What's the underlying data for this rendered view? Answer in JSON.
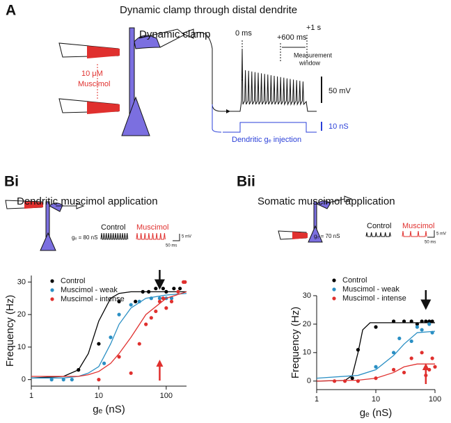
{
  "panel_a": {
    "label": "A",
    "title": "Dynamic clamp through distal dendrite",
    "clamp_label": "Dynamic clamp",
    "drug_dose": "10 μM",
    "drug_name": "Muscimol",
    "t0": "0 ms",
    "t600": "+600 ms",
    "t1": "+1 s",
    "window_1": "Measurement",
    "window_2": "window",
    "v_scale": "50 mV",
    "g_scale": "10 nS",
    "injection": "Dendritic gₑ injection"
  },
  "panel_bi": {
    "label": "Bi",
    "title": "Dendritic muscimol application",
    "ge": "gₑ = 80 nS",
    "control": "Control",
    "muscimol": "Muscimol",
    "v_scale": "5 mV",
    "t_scale": "50 ms"
  },
  "panel_bii": {
    "label": "Bii",
    "title": "Somatic muscimol application",
    "ge": "gₑ = 70 nS",
    "control": "Control",
    "muscimol": "Muscimol",
    "v_scale": "5 mV",
    "t_scale": "50 ms"
  },
  "chart_data": [
    {
      "type": "scatter",
      "x_label": "gₑ (nS)",
      "y_label": "Frequency (Hz)",
      "log_x": true,
      "xlim": [
        1,
        200
      ],
      "ylim": [
        -2,
        32
      ],
      "xticks": [
        1,
        10,
        100
      ],
      "yticks": [
        0,
        10,
        20,
        30
      ],
      "arrow_x": 80,
      "series": [
        {
          "name": "Control",
          "color": "#000000",
          "x": [
            5,
            10,
            20,
            35,
            45,
            55,
            70,
            80,
            90,
            100,
            130,
            160
          ],
          "values": [
            3,
            11,
            24,
            24,
            27,
            27,
            28,
            29,
            28,
            27,
            28,
            28
          ],
          "fit_x": [
            1,
            3,
            5,
            7,
            10,
            15,
            20,
            30,
            50,
            100,
            200
          ],
          "fit_values": [
            0.5,
            1,
            3,
            8,
            18,
            25,
            26.5,
            27,
            27,
            27,
            27
          ]
        },
        {
          "name": "Muscimol - weak",
          "color": "#2a8fc4",
          "x": [
            2,
            3,
            4,
            12,
            15,
            20,
            30,
            40,
            60,
            80,
            100,
            120
          ],
          "values": [
            0,
            0,
            0,
            5,
            13,
            20,
            23,
            24,
            25,
            25,
            25,
            25
          ],
          "fit_x": [
            1,
            3,
            5,
            7,
            10,
            15,
            20,
            30,
            50,
            100,
            200
          ],
          "fit_values": [
            0.5,
            0.5,
            1,
            2,
            4,
            11,
            17,
            22,
            25,
            26,
            26.5
          ]
        },
        {
          "name": "Muscimol - intense",
          "color": "#e0302e",
          "x": [
            10,
            20,
            30,
            40,
            50,
            60,
            70,
            80,
            90,
            100,
            120,
            150,
            180,
            190
          ],
          "values": [
            0,
            7,
            2,
            11,
            17,
            19,
            21,
            24,
            25,
            22,
            24,
            27,
            30,
            30
          ],
          "fit_x": [
            1,
            3,
            5,
            7,
            10,
            15,
            20,
            30,
            50,
            100,
            200
          ],
          "fit_values": [
            1,
            1,
            1,
            1.5,
            2.5,
            5,
            8,
            13,
            20,
            25,
            27
          ]
        }
      ]
    },
    {
      "type": "scatter",
      "x_label": "gₑ (nS)",
      "y_label": "Frequency (Hz)",
      "log_x": true,
      "xlim": [
        1,
        100
      ],
      "ylim": [
        -3,
        30
      ],
      "xticks": [
        1,
        10,
        100
      ],
      "yticks": [
        0,
        10,
        20,
        30
      ],
      "arrow_x": 70,
      "series": [
        {
          "name": "Control",
          "color": "#000000",
          "x": [
            4,
            5,
            10,
            20,
            30,
            40,
            50,
            60,
            70,
            80,
            90
          ],
          "values": [
            1,
            11,
            19,
            21,
            21,
            21,
            20,
            21,
            21,
            21,
            21
          ],
          "fit_x": [
            1,
            3,
            4,
            5,
            6,
            8,
            10,
            100
          ],
          "fit_values": [
            0,
            0.2,
            2,
            10,
            18,
            20.5,
            20.5,
            20.5
          ]
        },
        {
          "name": "Muscimol - weak",
          "color": "#2a8fc4",
          "x": [
            10,
            20,
            25,
            40,
            50,
            60,
            80,
            90
          ],
          "values": [
            5,
            10,
            15,
            14,
            19,
            18,
            20,
            17
          ],
          "fit_x": [
            1,
            5,
            10,
            20,
            30,
            50,
            100
          ],
          "fit_values": [
            1,
            2,
            4,
            9,
            13,
            17,
            17.5
          ]
        },
        {
          "name": "Muscimol - intense",
          "color": "#e0302e",
          "x": [
            2,
            3,
            5,
            10,
            20,
            30,
            40,
            60,
            70,
            80,
            90,
            100
          ],
          "values": [
            0,
            0,
            0,
            1,
            4,
            3,
            8,
            10,
            2,
            4,
            8,
            5
          ],
          "fit_x": [
            1,
            5,
            10,
            20,
            30,
            50,
            100
          ],
          "fit_values": [
            0,
            0.3,
            1,
            3,
            5,
            6,
            6
          ]
        }
      ]
    }
  ]
}
